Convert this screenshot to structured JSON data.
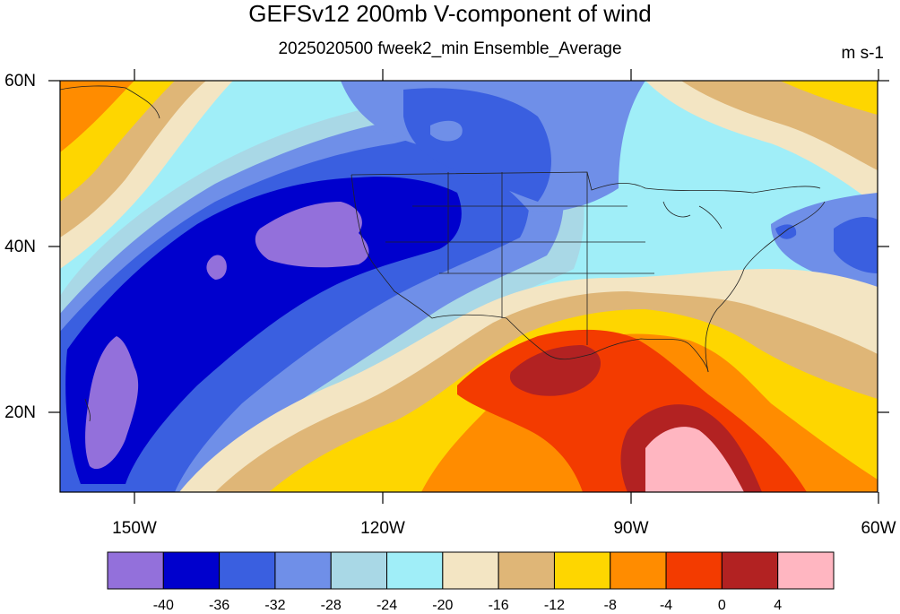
{
  "title": "GEFSv12 200mb V-component of wind",
  "subtitle": "2025020500 fweek2_min Ensemble_Average",
  "units": "m s-1",
  "lat_labels": [
    "60N",
    "40N",
    "20N"
  ],
  "lon_labels": [
    "150W",
    "120W",
    "90W",
    "60W"
  ],
  "colorbar": {
    "colors": [
      "#9370DB",
      "#0000CD",
      "#3A5FE0",
      "#6F8FE8",
      "#A9D8E6",
      "#A0EEF8",
      "#F3E5C3",
      "#DFB677",
      "#FED600",
      "#FF8C00",
      "#F33B00",
      "#B22222",
      "#FFB6C1"
    ],
    "labels": [
      "-40",
      "-36",
      "-32",
      "-28",
      "-24",
      "-20",
      "-16",
      "-12",
      "-8",
      "-4",
      "0",
      "4"
    ]
  },
  "map": {
    "extent": {
      "lon": [
        -159,
        -60
      ],
      "lat": [
        10,
        60
      ]
    }
  }
}
